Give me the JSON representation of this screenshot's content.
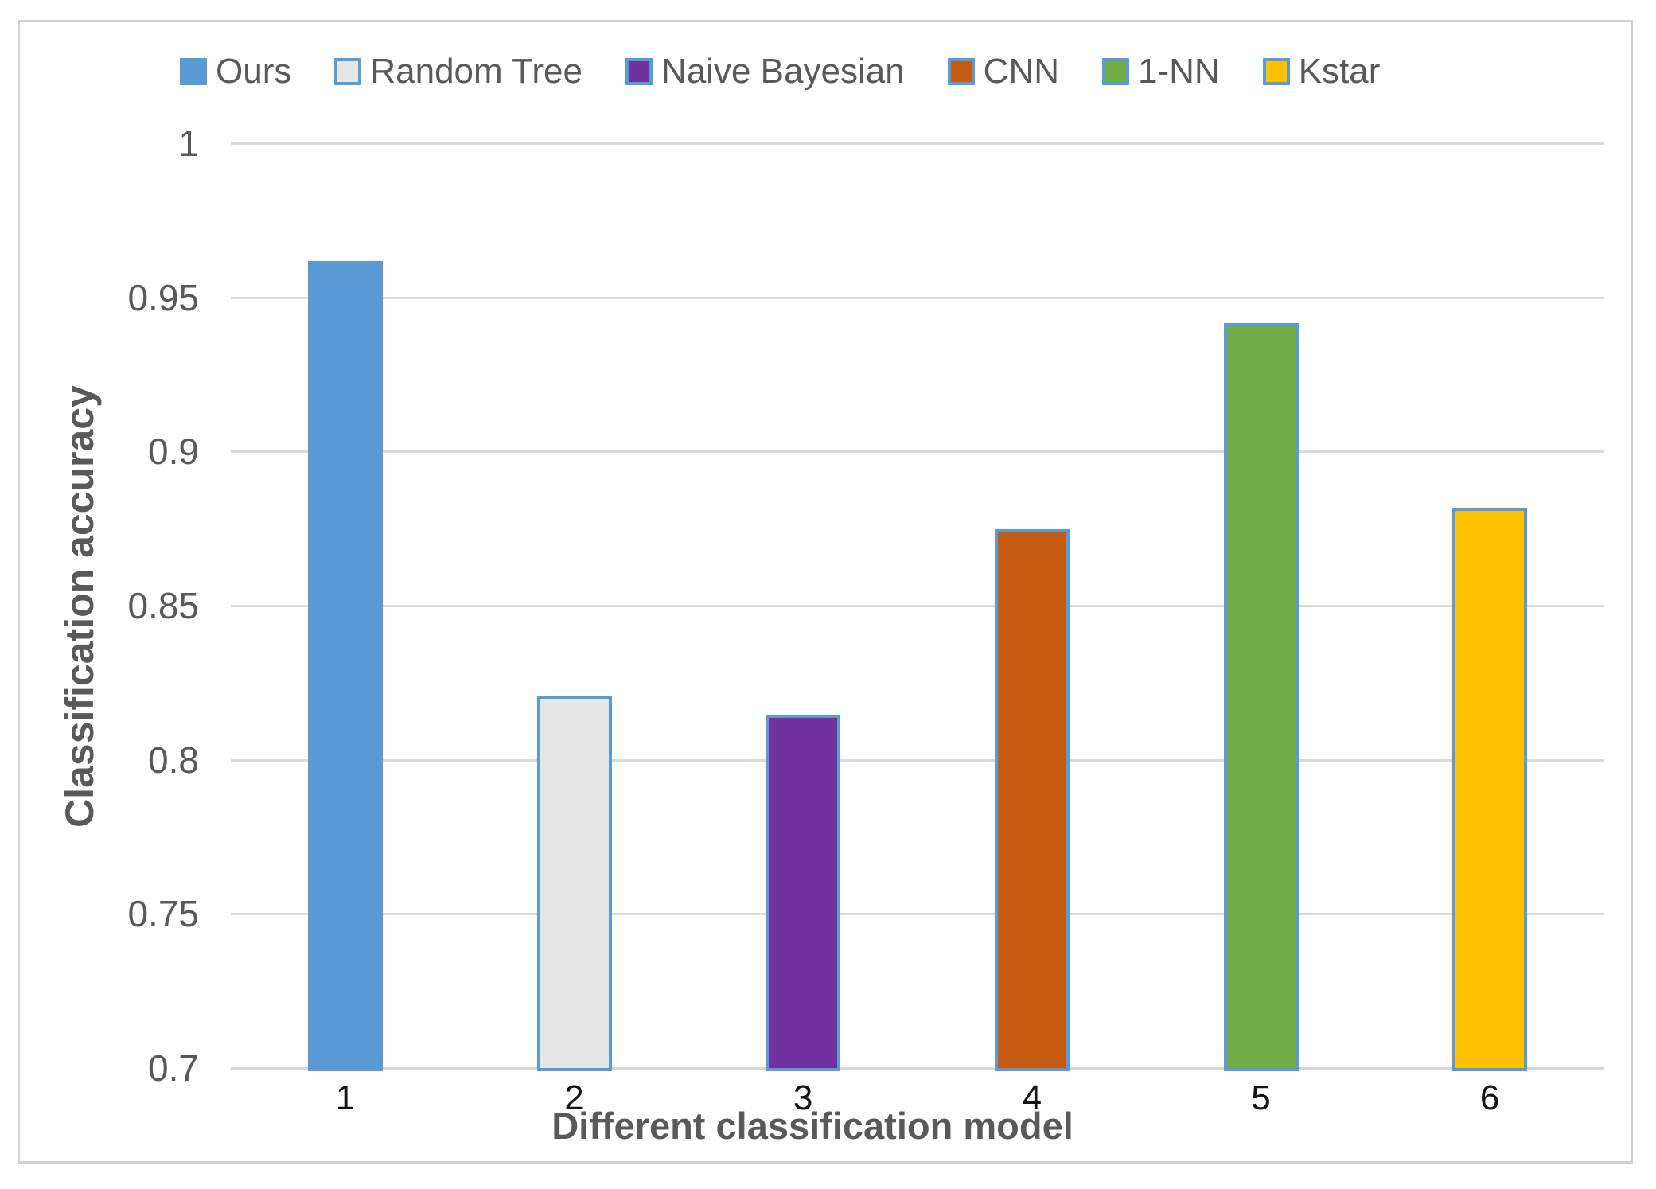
{
  "chart_data": {
    "type": "bar",
    "xlabel": "Different classification model",
    "ylabel": "Classification accuracy",
    "categories": [
      "1",
      "2",
      "3",
      "4",
      "5",
      "6"
    ],
    "bars": [
      {
        "label": "Ours",
        "category": "1",
        "value": 0.962,
        "color": "#5B9BD5"
      },
      {
        "label": "Random Tree",
        "category": "2",
        "value": 0.821,
        "color": "#E7E6E6"
      },
      {
        "label": "Naive Bayesian",
        "category": "3",
        "value": 0.815,
        "color": "#7030A0"
      },
      {
        "label": "CNN",
        "category": "4",
        "value": 0.875,
        "color": "#C55A11"
      },
      {
        "label": "1-NN",
        "category": "5",
        "value": 0.942,
        "color": "#70AD47"
      },
      {
        "label": "Kstar",
        "category": "6",
        "value": 0.882,
        "color": "#FFC000"
      }
    ],
    "ylim": [
      0.7,
      1.0
    ],
    "yticks": [
      "1",
      "0.95",
      "0.9",
      "0.85",
      "0.8",
      "0.75",
      "0.7"
    ],
    "grid": true,
    "legend_position": "top",
    "colors": {
      "bar_border": "#5B9BD5",
      "gridline": "#dadada",
      "axis_line": "#d6d6d6",
      "ytick_text": "#595959",
      "xtick_text": "#141414",
      "axis_title_text": "#595959",
      "frame_border": "#d2d0d0"
    }
  }
}
